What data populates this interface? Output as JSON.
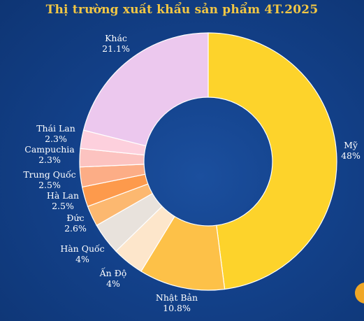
{
  "chart_data": {
    "type": "pie",
    "title": "Thị trường xuất khẩu sản phẩm 4T.2025",
    "slices": [
      {
        "label": "Mỹ",
        "value_text": "48%",
        "value": 48.0,
        "color": "#fdd32b"
      },
      {
        "label": "Nhật Bản",
        "value_text": "10.8%",
        "value": 10.8,
        "color": "#fdc148"
      },
      {
        "label": "Ấn Độ",
        "value_text": "4%",
        "value": 4.0,
        "color": "#fde6cb"
      },
      {
        "label": "Hàn Quốc",
        "value_text": "4%",
        "value": 4.0,
        "color": "#e8e2dc"
      },
      {
        "label": "Đức",
        "value_text": "2.6%",
        "value": 2.6,
        "color": "#fcb870"
      },
      {
        "label": "Hà Lan",
        "value_text": "2.5%",
        "value": 2.5,
        "color": "#fd9a4c"
      },
      {
        "label": "Trung Quốc",
        "value_text": "2.5%",
        "value": 2.5,
        "color": "#fcad86"
      },
      {
        "label": "Campuchia",
        "value_text": "2.3%",
        "value": 2.3,
        "color": "#fcc3c0"
      },
      {
        "label": "Thái Lan",
        "value_text": "2.3%",
        "value": 2.3,
        "color": "#fdd0dd"
      },
      {
        "label": "Khác",
        "value_text": "21.1%",
        "value": 21.1,
        "color": "#ecc8ee"
      }
    ]
  }
}
